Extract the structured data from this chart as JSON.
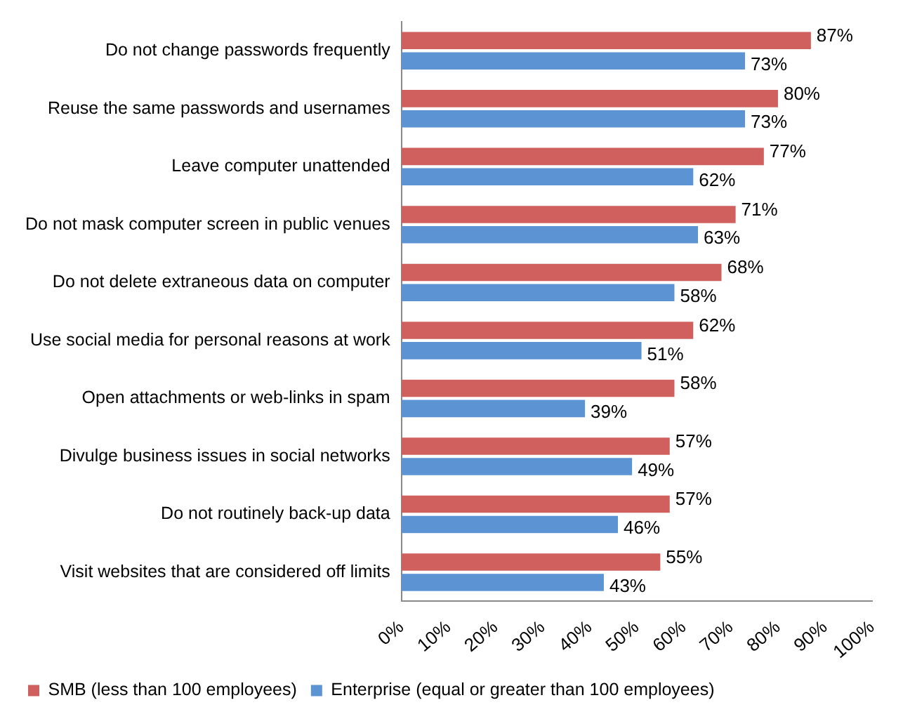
{
  "chart_data": {
    "type": "bar",
    "orientation": "horizontal",
    "categories": [
      "Do not change passwords frequently",
      "Reuse the same passwords and usernames",
      "Leave computer unattended",
      "Do not mask computer screen in public venues",
      "Do not delete extraneous data on computer",
      "Use social media for personal reasons at work",
      "Open attachments or web-links in spam",
      "Divulge business issues in social networks",
      "Do not routinely back-up data",
      "Visit websites that are considered off limits"
    ],
    "series": [
      {
        "name": "SMB (less than 100 employees)",
        "color": "#d0605e",
        "values": [
          87,
          80,
          77,
          71,
          68,
          62,
          58,
          57,
          57,
          55
        ],
        "value_labels": [
          "87%",
          "80%",
          "77%",
          "71%",
          "68%",
          "62%",
          "58%",
          "57%",
          "57%",
          "55%"
        ]
      },
      {
        "name": "Enterprise (equal or greater than 100 employees)",
        "color": "#5b93d3",
        "values": [
          73,
          73,
          62,
          63,
          58,
          51,
          39,
          49,
          46,
          43
        ],
        "value_labels": [
          "73%",
          "73%",
          "62%",
          "63%",
          "58%",
          "51%",
          "39%",
          "49%",
          "46%",
          "43%"
        ]
      }
    ],
    "xlim": [
      0,
      100
    ],
    "xticks": [
      {
        "value": 0,
        "label": "0%"
      },
      {
        "value": 10,
        "label": "10%"
      },
      {
        "value": 20,
        "label": "20%"
      },
      {
        "value": 30,
        "label": "30%"
      },
      {
        "value": 40,
        "label": "40%"
      },
      {
        "value": 50,
        "label": "50%"
      },
      {
        "value": 60,
        "label": "60%"
      },
      {
        "value": 70,
        "label": "70%"
      },
      {
        "value": 80,
        "label": "80%"
      },
      {
        "value": 90,
        "label": "90%"
      },
      {
        "value": 100,
        "label": "100%"
      }
    ],
    "grid": false,
    "legend": "bottom"
  }
}
